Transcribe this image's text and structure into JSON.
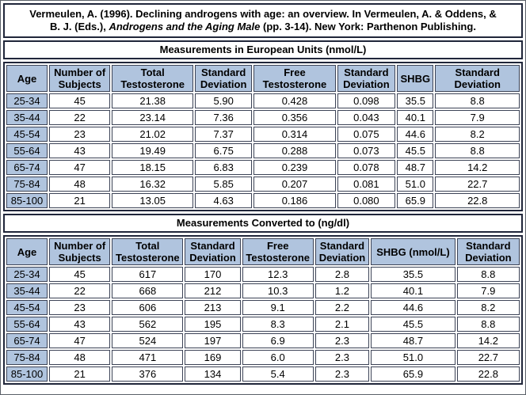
{
  "citation": {
    "prefix": "Vermeulen, A. (1996). Declining androgens with age: an overview. In Vermeulen, A. & Oddens, & B. J. (Eds.), ",
    "italic": "Androgens and the Aging Male",
    "suffix": " (pp. 3-14). New York: Parthenon Publishing."
  },
  "colors": {
    "header_cell_bg": "#b0c4de",
    "box_border": "#20263a",
    "cell_border": "#3c4356",
    "page_bg": "#ffffff",
    "text": "#000000"
  },
  "tables": [
    {
      "title": "Measurements in European Units (nmol/L)",
      "headers": [
        "Age",
        "Number of Subjects",
        "Total Testosterone",
        "Standard Deviation",
        "Free Testosterone",
        "Standard Deviation",
        "SHBG",
        "Standard Deviation"
      ],
      "rows": [
        [
          "25-34",
          "45",
          "21.38",
          "5.90",
          "0.428",
          "0.098",
          "35.5",
          "8.8"
        ],
        [
          "35-44",
          "22",
          "23.14",
          "7.36",
          "0.356",
          "0.043",
          "40.1",
          "7.9"
        ],
        [
          "45-54",
          "23",
          "21.02",
          "7.37",
          "0.314",
          "0.075",
          "44.6",
          "8.2"
        ],
        [
          "55-64",
          "43",
          "19.49",
          "6.75",
          "0.288",
          "0.073",
          "45.5",
          "8.8"
        ],
        [
          "65-74",
          "47",
          "18.15",
          "6.83",
          "0.239",
          "0.078",
          "48.7",
          "14.2"
        ],
        [
          "75-84",
          "48",
          "16.32",
          "5.85",
          "0.207",
          "0.081",
          "51.0",
          "22.7"
        ],
        [
          "85-100",
          "21",
          "13.05",
          "4.63",
          "0.186",
          "0.080",
          "65.9",
          "22.8"
        ]
      ]
    },
    {
      "title": "Measurements Converted to (ng/dl)",
      "headers": [
        "Age",
        "Number of Subjects",
        "Total Testosterone",
        "Standard Deviation",
        "Free Testosterone",
        "Standard Deviation",
        "SHBG (nmol/L)",
        "Standard Deviation"
      ],
      "rows": [
        [
          "25-34",
          "45",
          "617",
          "170",
          "12.3",
          "2.8",
          "35.5",
          "8.8"
        ],
        [
          "35-44",
          "22",
          "668",
          "212",
          "10.3",
          "1.2",
          "40.1",
          "7.9"
        ],
        [
          "45-54",
          "23",
          "606",
          "213",
          "9.1",
          "2.2",
          "44.6",
          "8.2"
        ],
        [
          "55-64",
          "43",
          "562",
          "195",
          "8.3",
          "2.1",
          "45.5",
          "8.8"
        ],
        [
          "65-74",
          "47",
          "524",
          "197",
          "6.9",
          "2.3",
          "48.7",
          "14.2"
        ],
        [
          "75-84",
          "48",
          "471",
          "169",
          "6.0",
          "2.3",
          "51.0",
          "22.7"
        ],
        [
          "85-100",
          "21",
          "376",
          "134",
          "5.4",
          "2.3",
          "65.9",
          "22.8"
        ]
      ]
    }
  ]
}
